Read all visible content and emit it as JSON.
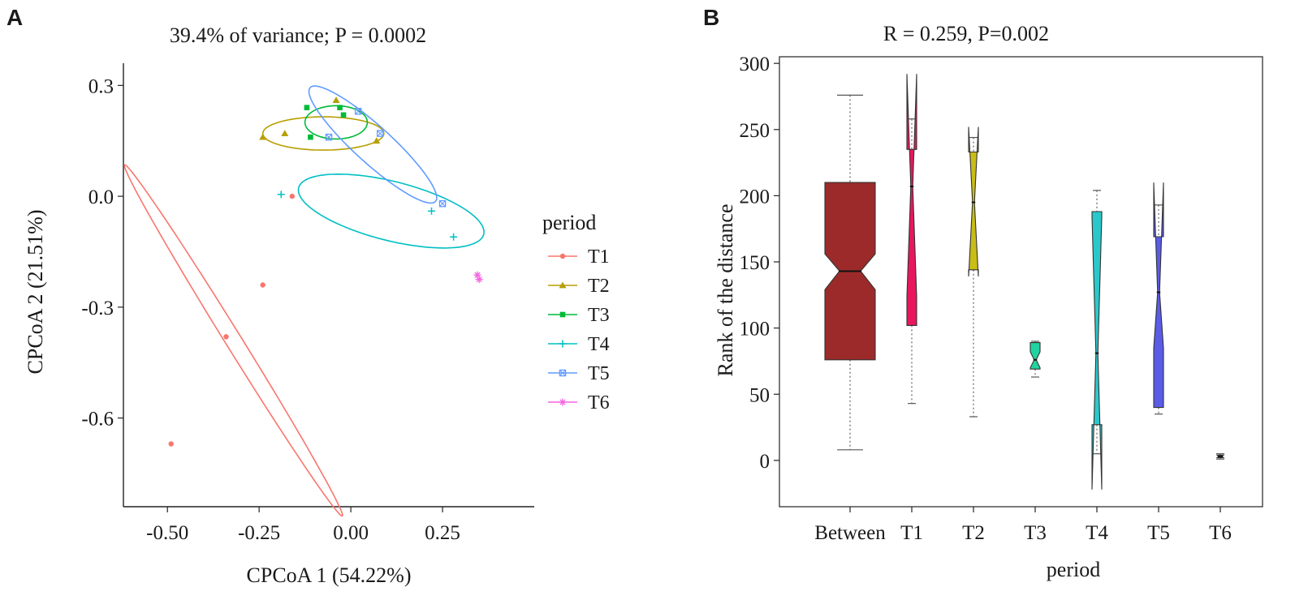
{
  "panels": {
    "a_label": "A",
    "b_label": "B"
  },
  "chart_data": [
    {
      "type": "scatter",
      "title": "39.4% of variance; P = 0.0002",
      "xlabel": "CPCoA 1  (54.22%)",
      "ylabel": "CPCoA 2  (21.51%)",
      "xlim": [
        -0.62,
        0.5
      ],
      "ylim": [
        -0.84,
        0.36
      ],
      "xticks": [
        -0.5,
        -0.25,
        0.0,
        0.25
      ],
      "xtick_labels": [
        "-0.50",
        "-0.25",
        "0.00",
        "0.25"
      ],
      "yticks": [
        0.3,
        0.0,
        -0.3,
        -0.6
      ],
      "ytick_labels": [
        "0.3",
        "0.0",
        "-0.3",
        "-0.6"
      ],
      "legend": {
        "title": "period",
        "position": "right",
        "entries": [
          {
            "label": "T1",
            "color": "#F8766D",
            "marker": "circle"
          },
          {
            "label": "T2",
            "color": "#B79F00",
            "marker": "triangle"
          },
          {
            "label": "T3",
            "color": "#00BA38",
            "marker": "square"
          },
          {
            "label": "T4",
            "color": "#00BFC4",
            "marker": "plus"
          },
          {
            "label": "T5",
            "color": "#619CFF",
            "marker": "boxcross"
          },
          {
            "label": "T6",
            "color": "#F564E3",
            "marker": "asterisk"
          }
        ]
      },
      "series": [
        {
          "name": "T1",
          "points": [
            [
              -0.49,
              -0.67
            ],
            [
              -0.34,
              -0.38
            ],
            [
              -0.24,
              -0.24
            ],
            [
              -0.16,
              -0.0
            ]
          ]
        },
        {
          "name": "T2",
          "points": [
            [
              -0.24,
              0.16
            ],
            [
              -0.18,
              0.17
            ],
            [
              -0.04,
              0.26
            ],
            [
              0.07,
              0.15
            ]
          ]
        },
        {
          "name": "T3",
          "points": [
            [
              -0.12,
              0.24
            ],
            [
              -0.11,
              0.16
            ],
            [
              -0.03,
              0.24
            ],
            [
              -0.02,
              0.22
            ]
          ]
        },
        {
          "name": "T4",
          "points": [
            [
              -0.19,
              0.005
            ],
            [
              0.22,
              -0.04
            ],
            [
              0.28,
              -0.11
            ]
          ]
        },
        {
          "name": "T5",
          "points": [
            [
              -0.06,
              0.16
            ],
            [
              0.02,
              0.23
            ],
            [
              0.08,
              0.17
            ],
            [
              0.25,
              -0.02
            ]
          ]
        },
        {
          "name": "T6",
          "points": [
            [
              0.345,
              -0.213
            ],
            [
              0.35,
              -0.225
            ]
          ]
        }
      ],
      "ellipses": [
        {
          "name": "T1",
          "cx": -0.32,
          "cy": -0.39,
          "rx": 0.56,
          "ry": 0.022,
          "angle_deg": -58
        },
        {
          "name": "T2",
          "cx": -0.075,
          "cy": 0.17,
          "rx": 0.165,
          "ry": 0.045,
          "angle_deg": 0
        },
        {
          "name": "T3",
          "cx": -0.04,
          "cy": 0.2,
          "rx": 0.085,
          "ry": 0.045,
          "angle_deg": 0
        },
        {
          "name": "T4",
          "cx": 0.11,
          "cy": -0.04,
          "rx": 0.26,
          "ry": 0.08,
          "angle_deg": -14
        },
        {
          "name": "T5",
          "cx": 0.06,
          "cy": 0.14,
          "rx": 0.23,
          "ry": 0.05,
          "angle_deg": -42
        }
      ]
    },
    {
      "type": "box",
      "title": "R = 0.259, P=0.002",
      "xlabel": "period",
      "ylabel": "Rank of the distance",
      "ylim": [
        -35,
        305
      ],
      "yticks": [
        0,
        50,
        100,
        150,
        200,
        250,
        300
      ],
      "ytick_labels": [
        "0",
        "50",
        "100",
        "150",
        "200",
        "250",
        "300"
      ],
      "categories": [
        "Between",
        "T1",
        "T2",
        "T3",
        "T4",
        "T5",
        "T6"
      ],
      "boxes": [
        {
          "name": "Between",
          "color": "#9C2A2A",
          "whisker_low": 8,
          "q1": 76,
          "median": 143,
          "q3": 210,
          "whisker_high": 276,
          "notch_low": 129,
          "notch_high": 156
        },
        {
          "name": "T1",
          "color": "#E8175D",
          "whisker_low": 43,
          "q1": 102,
          "median": 207,
          "q3": 235,
          "whisker_high": 258,
          "notch_low": 124,
          "notch_high": 292
        },
        {
          "name": "T2",
          "color": "#C9BD16",
          "whisker_low": 33,
          "q1": 144,
          "median": 195,
          "q3": 233,
          "whisker_high": 244,
          "notch_low": 139,
          "notch_high": 252
        },
        {
          "name": "T3",
          "color": "#21D3A0",
          "whisker_low": 63,
          "q1": 69,
          "median": 76,
          "q3": 89,
          "whisker_high": 90,
          "notch_low": 70,
          "notch_high": 82
        },
        {
          "name": "T4",
          "color": "#2BC8CB",
          "whisker_low": 5,
          "q1": 27,
          "median": 81,
          "q3": 188,
          "whisker_high": 204,
          "notch_low": -22,
          "notch_high": 184
        },
        {
          "name": "T5",
          "color": "#5A5CE8",
          "whisker_low": 35,
          "q1": 40,
          "median": 127,
          "q3": 169,
          "whisker_high": 193,
          "notch_low": 85,
          "notch_high": 210
        },
        {
          "name": "T6",
          "color": "#9C2A2A",
          "whisker_low": 1,
          "q1": 2,
          "median": 3,
          "q3": 4,
          "whisker_high": 5,
          "notch_low": 2,
          "notch_high": 4
        }
      ]
    }
  ]
}
